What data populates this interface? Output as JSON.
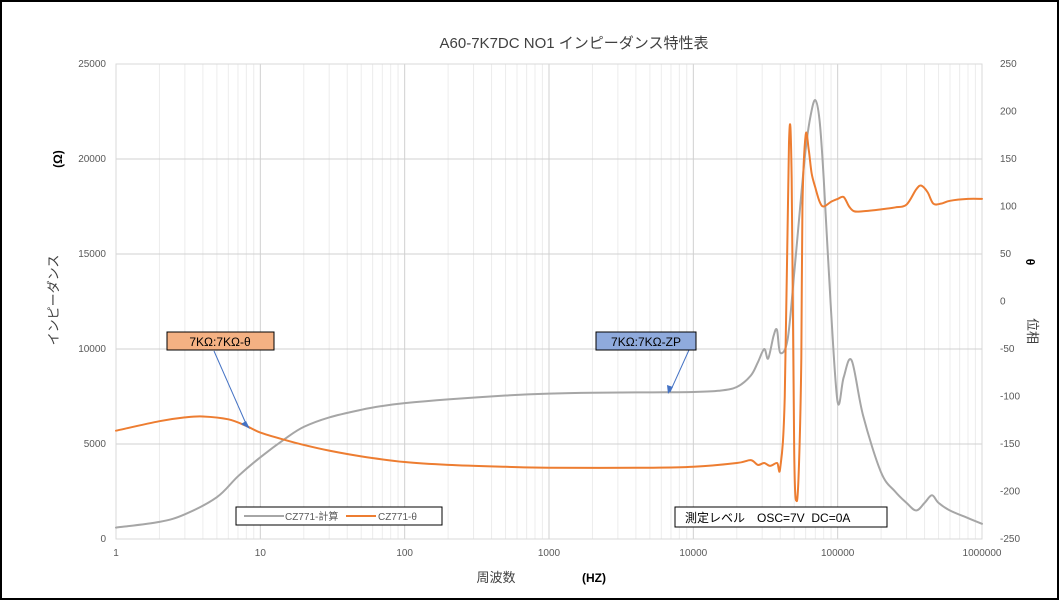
{
  "chart_data": {
    "type": "line",
    "title": "A60-7K7DC NO1 インピーダンス特性表",
    "xlabel": "周波数",
    "xlabel_unit": "(HZ)",
    "ylabel": "インピーダンス",
    "ylabel_unit": "(Ω)",
    "y2label": "位相",
    "y2label_unit": "θ",
    "x_scale": "log",
    "xlim": [
      1,
      1000000
    ],
    "ylim": [
      0,
      25000
    ],
    "y2lim": [
      -250,
      250
    ],
    "grid": true,
    "legend_position": "bottom-left",
    "x_ticks": [
      "1",
      "10",
      "100",
      "1000",
      "10000",
      "100000",
      "1000000"
    ],
    "y_ticks": [
      "0",
      "5000",
      "10000",
      "15000",
      "20000",
      "25000"
    ],
    "y2_ticks": [
      "-250",
      "-200",
      "-150",
      "-100",
      "-50",
      "0",
      "50",
      "100",
      "150",
      "200",
      "250"
    ],
    "series": [
      {
        "name": "CZ771-計算",
        "axis": "left",
        "color": "#a6a6a6",
        "x": [
          1,
          2,
          3,
          5,
          7,
          10,
          15,
          20,
          30,
          50,
          70,
          100,
          200,
          500,
          1000,
          2000,
          5000,
          10000,
          15000,
          20000,
          25000,
          28000,
          31000,
          33000,
          36000,
          38000,
          40000,
          45000,
          50000,
          55000,
          60000,
          65000,
          70000,
          75000,
          80000,
          90000,
          100000,
          110000,
          125000,
          150000,
          200000,
          250000,
          300000,
          350000,
          400000,
          450000,
          500000,
          600000,
          800000,
          1000000
        ],
        "y": [
          600,
          900,
          1300,
          2200,
          3300,
          4300,
          5300,
          5900,
          6400,
          6800,
          7000,
          7150,
          7350,
          7550,
          7650,
          7700,
          7720,
          7740,
          7800,
          8000,
          8600,
          9300,
          10000,
          9500,
          10700,
          11000,
          9800,
          10500,
          14000,
          17500,
          20500,
          22300,
          23100,
          22000,
          19000,
          12000,
          7200,
          8500,
          9400,
          6500,
          3500,
          2500,
          1900,
          1500,
          1900,
          2300,
          1900,
          1500,
          1100,
          800
        ]
      },
      {
        "name": "CZ771-θ",
        "axis": "right",
        "color": "#ed7d31",
        "x": [
          1,
          2,
          3,
          4,
          6,
          8,
          10,
          15,
          20,
          30,
          50,
          100,
          200,
          500,
          1000,
          5000,
          10000,
          20000,
          25000,
          28000,
          31000,
          34000,
          38000,
          40000,
          43000,
          46000,
          48000,
          50000,
          52000,
          54000,
          56000,
          57000,
          60000,
          63000,
          66000,
          70000,
          75000,
          80000,
          90000,
          100000,
          110000,
          120000,
          130000,
          150000,
          200000,
          250000,
          300000,
          350000,
          380000,
          420000,
          460000,
          520000,
          600000,
          800000,
          1000000
        ],
        "y": [
          -136,
          -126,
          -122,
          -121,
          -124,
          -131,
          -138,
          -146,
          -151,
          -157,
          -163,
          -169,
          -172,
          -174,
          -175,
          -175,
          -174,
          -170,
          -167,
          -172,
          -170,
          -173,
          -170,
          -175,
          -100,
          167,
          130,
          -160,
          -210,
          -170,
          -60,
          100,
          175,
          160,
          135,
          120,
          105,
          100,
          105,
          108,
          110,
          100,
          95,
          95,
          97,
          99,
          102,
          118,
          122,
          115,
          103,
          103,
          106,
          108,
          108
        ]
      }
    ],
    "annotations": [
      {
        "text": "7KΩ:7KΩ-θ",
        "fill": "#f4b183"
      },
      {
        "text": "7KΩ:7KΩ-ZP",
        "fill": "#8faadc"
      },
      {
        "text": "測定レベル　OSC=7V  DC=0A",
        "fill": "#ffffff"
      }
    ]
  }
}
